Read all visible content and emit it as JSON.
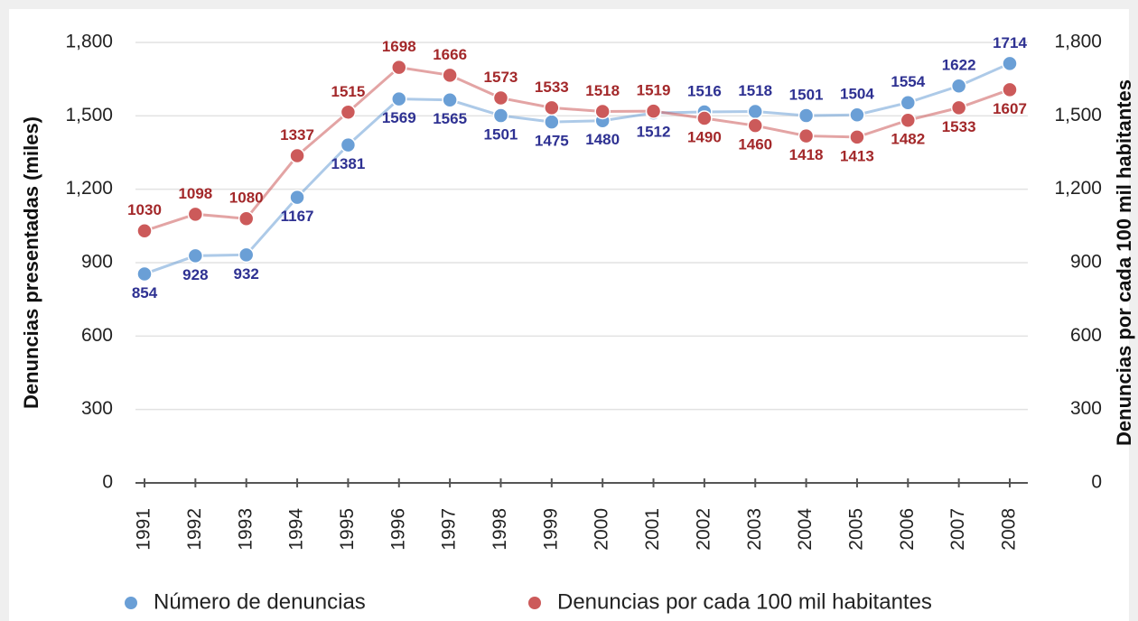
{
  "chart_data": {
    "type": "line",
    "y_label": "Denuncias presentadas (miles)",
    "y2_label": "Denuncias por cada 100 mil habitantes",
    "categories": [
      "1991",
      "1992",
      "1993",
      "1994",
      "1995",
      "1996",
      "1997",
      "1998",
      "1999",
      "2000",
      "2001",
      "2002",
      "2003",
      "2004",
      "2005",
      "2006",
      "2007",
      "2008"
    ],
    "series": [
      {
        "name": "Número de denuncias",
        "color": "#6a9fd6",
        "label_color": "#2e3192",
        "axis": "y",
        "values": [
          854,
          928,
          932,
          1167,
          1381,
          1569,
          1565,
          1501,
          1475,
          1480,
          1512,
          1516,
          1518,
          1501,
          1504,
          1554,
          1622,
          1714
        ]
      },
      {
        "name": "Denuncias por cada 100 mil habitantes",
        "color": "#cc5a5a",
        "label_color": "#a3282a",
        "axis": "y2",
        "values": [
          1030,
          1098,
          1080,
          1337,
          1515,
          1698,
          1666,
          1573,
          1533,
          1518,
          1519,
          1490,
          1460,
          1418,
          1413,
          1482,
          1533,
          1607
        ]
      }
    ],
    "ylim": [
      0,
      1800
    ],
    "yticks": [
      0,
      300,
      600,
      900,
      {
        "value": 1200,
        "label": "1,200"
      },
      {
        "value": 1500,
        "label": "1,500"
      },
      {
        "value": 1800,
        "label": "1,800"
      }
    ],
    "y2lim": [
      0,
      1800
    ],
    "y2ticks": [
      0,
      300,
      600,
      900,
      {
        "value": 1200,
        "label": "1,200"
      },
      {
        "value": 1500,
        "label": "1,500"
      },
      {
        "value": 1800,
        "label": "1,800"
      }
    ],
    "grid": true
  }
}
